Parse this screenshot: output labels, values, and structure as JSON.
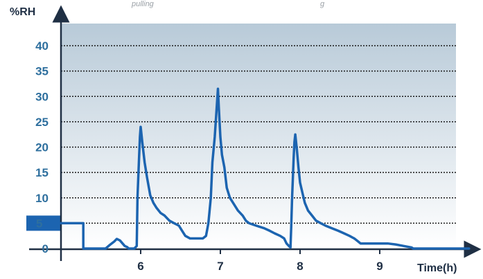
{
  "header": {
    "caption_left": "pulling",
    "caption_right": "g"
  },
  "colors": {
    "line": "#1c64b0",
    "axis": "#1f2f44",
    "y_tick_text": "#2e6f9e",
    "grid": "#1a1a1a",
    "bg_top": "#b8cad8",
    "bg_bottom": "#ffffff",
    "highlight": "#1c64b0"
  },
  "chart_data": {
    "type": "line",
    "title": "",
    "xlabel": "Time(h)",
    "ylabel": "%RH",
    "xlim": [
      5.0,
      10.3
    ],
    "ylim": [
      0,
      42
    ],
    "x_ticks": [
      6,
      7,
      8,
      9
    ],
    "x_tick_labels": [
      "6",
      "7",
      "8",
      "9"
    ],
    "y_ticks": [
      0,
      5,
      10,
      15,
      20,
      25,
      30,
      35,
      40
    ],
    "y_tick_labels": [
      "0",
      "5",
      "10",
      "15",
      "20",
      "25",
      "30",
      "35",
      "40"
    ],
    "highlighted_y_tick": 5,
    "grid": "horizontal dotted",
    "series": [
      {
        "x": [
          5.0,
          5.28,
          5.28,
          5.56,
          5.62,
          5.67,
          5.7,
          5.74,
          5.8,
          5.83,
          5.85,
          5.92,
          5.95,
          5.96,
          5.98,
          5.99,
          6.0,
          6.02,
          6.05,
          6.08,
          6.12,
          6.16,
          6.2,
          6.25,
          6.3,
          6.36,
          6.42,
          6.48,
          6.52,
          6.56,
          6.62,
          6.7,
          6.75,
          6.78,
          6.82,
          6.85,
          6.88,
          6.9,
          6.93,
          6.95,
          6.97,
          6.98,
          7.0,
          7.02,
          7.05,
          7.08,
          7.12,
          7.16,
          7.22,
          7.28,
          7.32,
          7.36,
          7.45,
          7.55,
          7.62,
          7.68,
          7.75,
          7.8,
          7.83,
          7.86,
          7.88,
          7.89,
          7.9,
          7.92,
          7.93,
          7.94,
          7.96,
          7.98,
          8.0,
          8.03,
          8.06,
          8.1,
          8.15,
          8.2,
          8.26,
          8.32,
          8.4,
          8.48,
          8.55,
          8.62,
          8.68,
          8.72,
          8.76,
          8.8,
          8.9,
          9.0,
          9.1,
          9.2,
          9.3,
          9.4,
          9.42,
          9.5,
          9.62,
          9.8,
          10.0,
          10.12
        ],
        "y": [
          5.0,
          5.0,
          0.0,
          0.0,
          0.8,
          1.4,
          1.9,
          1.6,
          0.5,
          0.3,
          0.0,
          0.0,
          0.5,
          10.0,
          18.0,
          22.0,
          24.0,
          21.0,
          17.0,
          14.0,
          10.5,
          9.0,
          8.0,
          7.0,
          6.5,
          5.5,
          5.0,
          4.5,
          3.5,
          2.5,
          2.0,
          2.0,
          2.0,
          2.0,
          2.5,
          5.0,
          10.0,
          17.0,
          22.0,
          27.0,
          31.5,
          28.0,
          22.0,
          18.5,
          16.0,
          12.0,
          10.0,
          9.0,
          7.5,
          6.5,
          5.5,
          5.0,
          4.5,
          4.0,
          3.5,
          3.0,
          2.5,
          2.0,
          1.0,
          0.5,
          0.2,
          4.5,
          10.0,
          18.0,
          21.0,
          22.5,
          19.5,
          16.0,
          13.0,
          11.0,
          9.0,
          7.5,
          6.5,
          5.5,
          5.0,
          4.5,
          4.0,
          3.5,
          3.0,
          2.5,
          2.0,
          1.5,
          1.0,
          1.0,
          1.0,
          1.0,
          1.0,
          0.8,
          0.5,
          0.2,
          0.0,
          0.0,
          0.0,
          0.0,
          0.0,
          0.0
        ]
      }
    ]
  }
}
